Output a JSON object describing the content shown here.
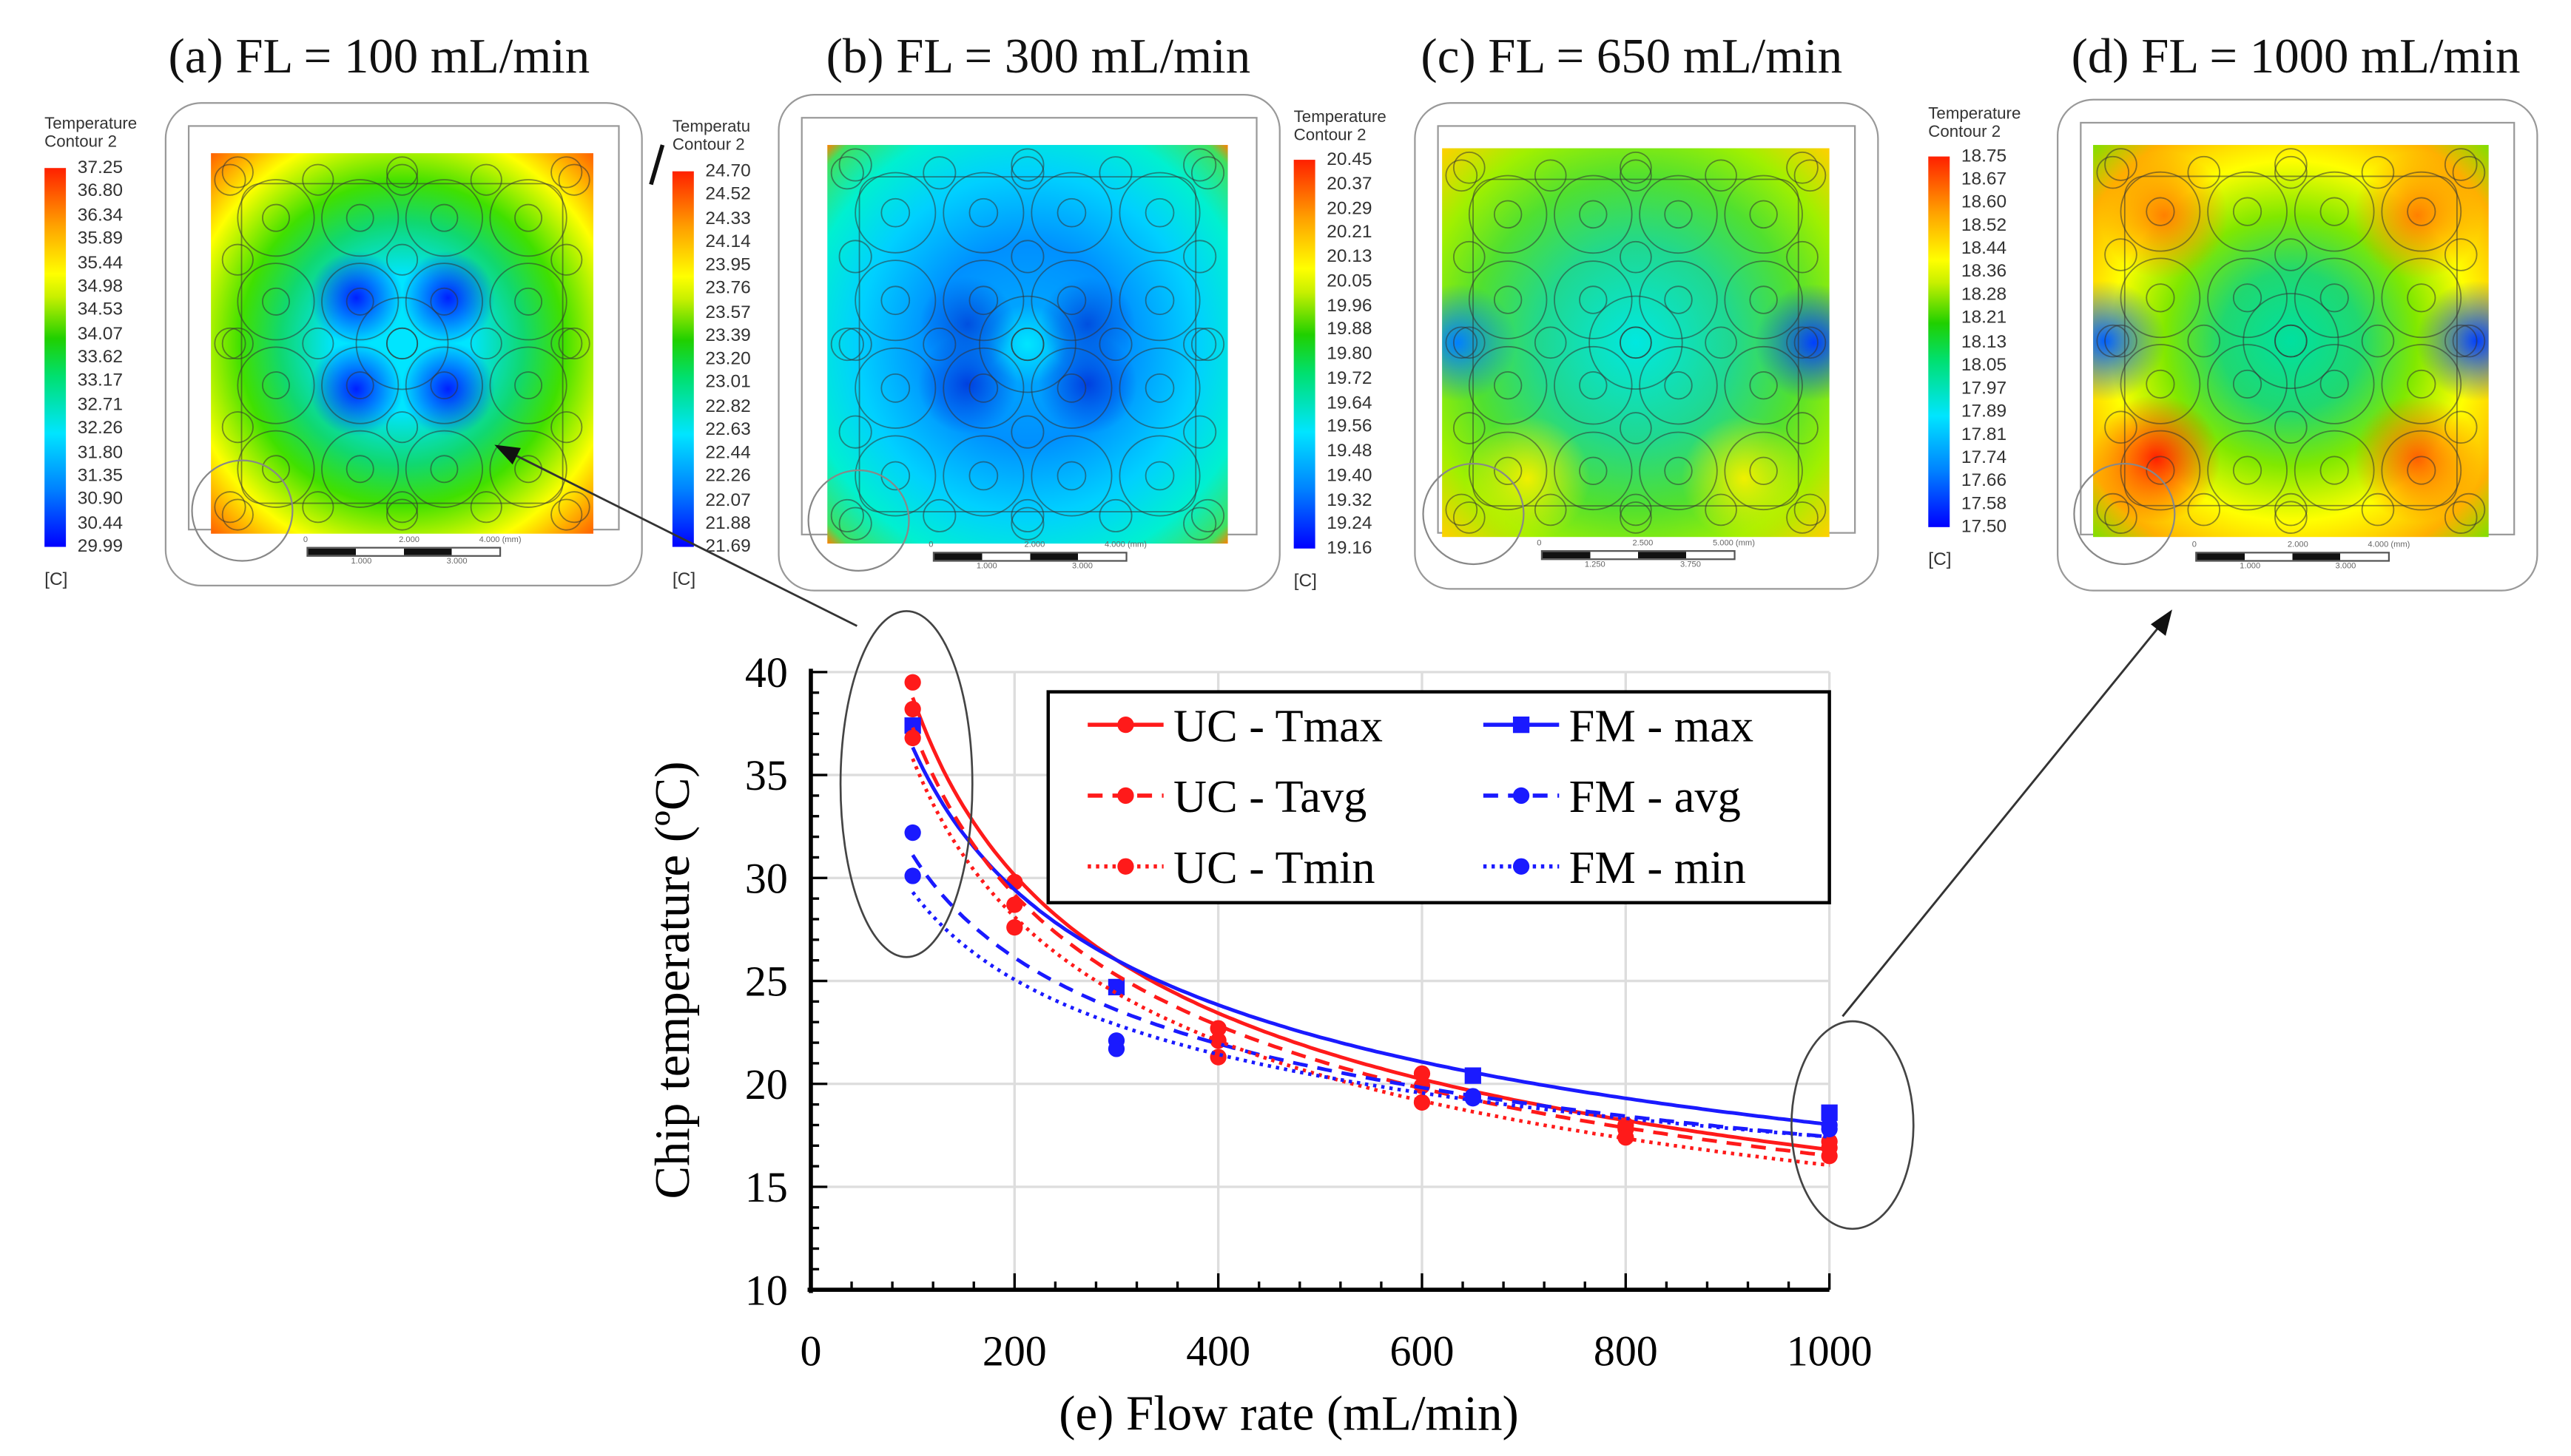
{
  "panels": [
    {
      "title": "(a) FL = 100 mL/min",
      "legend_title": [
        "Temperature",
        "Contour 2"
      ],
      "unit": "[C]",
      "ticks": [
        "37.25",
        "36.80",
        "36.34",
        "35.89",
        "35.44",
        "34.98",
        "34.53",
        "34.07",
        "33.62",
        "33.17",
        "32.71",
        "32.26",
        "31.80",
        "31.35",
        "30.90",
        "30.44",
        "29.99"
      ],
      "scale": [
        "0",
        "2.000",
        "4.000 (mm)",
        "1.000",
        "3.000"
      ]
    },
    {
      "title": "(b) FL = 300 mL/min",
      "legend_title": [
        "Temperatu",
        "Contour 2"
      ],
      "unit": "[C]",
      "ticks": [
        "24.70",
        "24.52",
        "24.33",
        "24.14",
        "23.95",
        "23.76",
        "23.57",
        "23.39",
        "23.20",
        "23.01",
        "22.82",
        "22.63",
        "22.44",
        "22.26",
        "22.07",
        "21.88",
        "21.69"
      ],
      "scale": [
        "0",
        "2.000",
        "4.000 (mm)",
        "1.000",
        "3.000"
      ]
    },
    {
      "title": "(c) FL = 650 mL/min",
      "legend_title": [
        "Temperature",
        "Contour 2"
      ],
      "unit": "[C]",
      "ticks": [
        "20.45",
        "20.37",
        "20.29",
        "20.21",
        "20.13",
        "20.05",
        "19.96",
        "19.88",
        "19.80",
        "19.72",
        "19.64",
        "19.56",
        "19.48",
        "19.40",
        "19.32",
        "19.24",
        "19.16"
      ],
      "scale": [
        "0",
        "2.500",
        "5.000 (mm)",
        "1.250",
        "3.750"
      ]
    },
    {
      "title": "(d) FL = 1000 mL/min",
      "legend_title": [
        "Temperature",
        "Contour 2"
      ],
      "unit": "[C]",
      "ticks": [
        "18.75",
        "18.67",
        "18.60",
        "18.52",
        "18.44",
        "18.36",
        "18.28",
        "18.21",
        "18.13",
        "18.05",
        "17.97",
        "17.89",
        "17.81",
        "17.74",
        "17.66",
        "17.58",
        "17.50"
      ],
      "scale": [
        "0",
        "2.000",
        "4.000 (mm)",
        "1.000",
        "3.000"
      ]
    }
  ],
  "chart_data": {
    "type": "line",
    "xlabel": "(e)  Flow rate (mL/min)",
    "ylabel": "Chip temperature (ºC)",
    "xlim": [
      0,
      1000
    ],
    "ylim": [
      10,
      40
    ],
    "xticks": [
      0,
      200,
      400,
      600,
      800,
      1000
    ],
    "yticks": [
      10,
      15,
      20,
      25,
      30,
      35,
      40
    ],
    "grid": true,
    "legend_position": "top-right",
    "series": [
      {
        "name": "UC - Tmax",
        "color": "#ff1a1a",
        "style": "solid",
        "marker": "circle",
        "x": [
          100,
          200,
          400,
          600,
          800,
          1000
        ],
        "y": [
          39.5,
          29.8,
          22.7,
          20.5,
          18.0,
          17.2
        ]
      },
      {
        "name": "FM - max",
        "color": "#1a1aff",
        "style": "solid",
        "marker": "square",
        "x": [
          100,
          300,
          650,
          1000
        ],
        "y": [
          37.4,
          24.7,
          20.4,
          18.6
        ]
      },
      {
        "name": "UC - Tavg",
        "color": "#ff1a1a",
        "style": "dashed",
        "marker": "circle",
        "x": [
          100,
          200,
          400,
          600,
          800,
          1000
        ],
        "y": [
          38.2,
          28.7,
          22.1,
          19.9,
          17.8,
          16.9
        ]
      },
      {
        "name": "FM - avg",
        "color": "#1a1aff",
        "style": "dashed",
        "marker": "circle",
        "x": [
          100,
          300,
          650,
          1000
        ],
        "y": [
          32.2,
          22.1,
          19.4,
          18.0
        ]
      },
      {
        "name": "UC - Tmin",
        "color": "#ff1a1a",
        "style": "dotted",
        "marker": "circle",
        "x": [
          100,
          200,
          400,
          600,
          800,
          1000
        ],
        "y": [
          36.8,
          27.6,
          21.3,
          19.1,
          17.4,
          16.5
        ]
      },
      {
        "name": "FM - min",
        "color": "#1a1aff",
        "style": "dotted",
        "marker": "circle",
        "x": [
          100,
          300,
          650,
          1000
        ],
        "y": [
          30.1,
          21.7,
          19.3,
          17.8
        ]
      }
    ]
  }
}
